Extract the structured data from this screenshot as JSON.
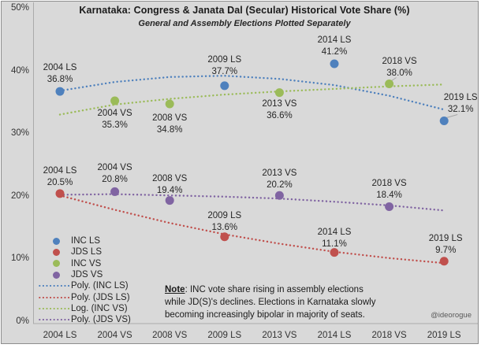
{
  "frame": {
    "background": "#d9d9d9",
    "border_color": "#8d8d8d",
    "axis_color": "#ababab"
  },
  "chart_data": {
    "type": "scatter",
    "title": "Karnataka: Congress & Janata Dal (Secular) Historical Vote Share (%)",
    "subtitle": "General and Assembly Elections Plotted Separately",
    "categories": [
      "2004 LS",
      "2004 VS",
      "2008 VS",
      "2009 LS",
      "2013 VS",
      "2014 LS",
      "2018 VS",
      "2019 LS"
    ],
    "y_axis": {
      "min": 0,
      "max": 50,
      "tick_step": 10,
      "tick_labels": [
        "50%",
        "40%",
        "30%",
        "20%",
        "10%",
        "0%"
      ],
      "unit": "%"
    },
    "grid": false,
    "legend_position": "bottom-left",
    "series": [
      {
        "name": "INC LS",
        "color": "#4F81BD",
        "points": [
          {
            "category": "2004 LS",
            "value": 36.8,
            "side": "above",
            "dy": -37
          },
          {
            "category": "2009 LS",
            "value": 37.7,
            "side": "above",
            "dy": -40
          },
          {
            "category": "2014 LS",
            "value": 41.2,
            "side": "above",
            "dy": -37
          },
          {
            "category": "2019 LS",
            "value": 32.1,
            "side": "above",
            "dy": -36,
            "dx": 21,
            "leader": true
          }
        ]
      },
      {
        "name": "JDS LS",
        "color": "#C0504D",
        "points": [
          {
            "category": "2004 LS",
            "value": 20.5,
            "side": "above",
            "dy": -36
          },
          {
            "category": "2009 LS",
            "value": 13.6,
            "side": "above",
            "dy": -34
          },
          {
            "category": "2014 LS",
            "value": 11.1,
            "side": "above",
            "dy": -33
          },
          {
            "category": "2019 LS",
            "value": 9.7,
            "side": "above",
            "dy": -36,
            "dx": 2
          }
        ]
      },
      {
        "name": "INC VS",
        "color": "#9BBB59",
        "points": [
          {
            "category": "2004 VS",
            "value": 35.3,
            "side": "below",
            "dy": 9
          },
          {
            "category": "2008 VS",
            "value": 34.8,
            "side": "below",
            "dy": 11
          },
          {
            "category": "2013 VS",
            "value": 36.6,
            "side": "below",
            "dy": 7
          },
          {
            "category": "2018 VS",
            "value": 38.0,
            "side": "above",
            "dy": -36,
            "dx": 13,
            "leader": true
          }
        ]
      },
      {
        "name": "JDS VS",
        "color": "#8064A2",
        "points": [
          {
            "category": "2004 VS",
            "value": 20.8,
            "side": "above",
            "dy": -37
          },
          {
            "category": "2008 VS",
            "value": 19.4,
            "side": "above",
            "dy": -35
          },
          {
            "category": "2013 VS",
            "value": 20.2,
            "side": "above",
            "dy": -35
          },
          {
            "category": "2018 VS",
            "value": 18.4,
            "side": "above",
            "dy": -37
          }
        ]
      }
    ],
    "trendlines": [
      {
        "name": "Poly. (INC LS)",
        "color": "#4F81BD",
        "values": [
          36.9,
          38.3,
          39.1,
          39.3,
          38.8,
          37.8,
          36.1,
          33.9
        ]
      },
      {
        "name": "Poly. (JDS LS)",
        "color": "#C0504D",
        "values": [
          20.2,
          17.9,
          15.8,
          14.0,
          12.5,
          11.2,
          10.2,
          9.4
        ]
      },
      {
        "name": "Log. (INC VS)",
        "color": "#9BBB59",
        "values": [
          33.1,
          34.7,
          35.6,
          36.3,
          36.8,
          37.2,
          37.6,
          37.9
        ]
      },
      {
        "name": "Poly. (JDS VS)",
        "color": "#8064A2",
        "values": [
          20.3,
          20.4,
          20.2,
          20.0,
          19.7,
          19.2,
          18.6,
          17.8
        ]
      }
    ],
    "legend": {
      "items": [
        {
          "label": "INC LS",
          "marker": "dot",
          "color": "#4F81BD"
        },
        {
          "label": "JDS LS",
          "marker": "dot",
          "color": "#C0504D"
        },
        {
          "label": "INC VS",
          "marker": "dot",
          "color": "#9BBB59"
        },
        {
          "label": "JDS VS",
          "marker": "dot",
          "color": "#8064A2"
        },
        {
          "label": "Poly. (INC LS)",
          "marker": "dotted-line",
          "color": "#4F81BD"
        },
        {
          "label": "Poly. (JDS LS)",
          "marker": "dotted-line",
          "color": "#C0504D"
        },
        {
          "label": "Log. (INC VS)",
          "marker": "dotted-line",
          "color": "#9BBB59"
        },
        {
          "label": "Poly. (JDS VS)",
          "marker": "dotted-line",
          "color": "#8064A2"
        }
      ]
    },
    "note": {
      "prefix": "Note",
      "lines": [
        ": INC vote share rising in assembly elections",
        "while JD(S)'s declines. Elections in Karnataka slowly",
        "becoming increasingly bipolar in majority of seats."
      ]
    },
    "watermark": "@ideorogue"
  }
}
